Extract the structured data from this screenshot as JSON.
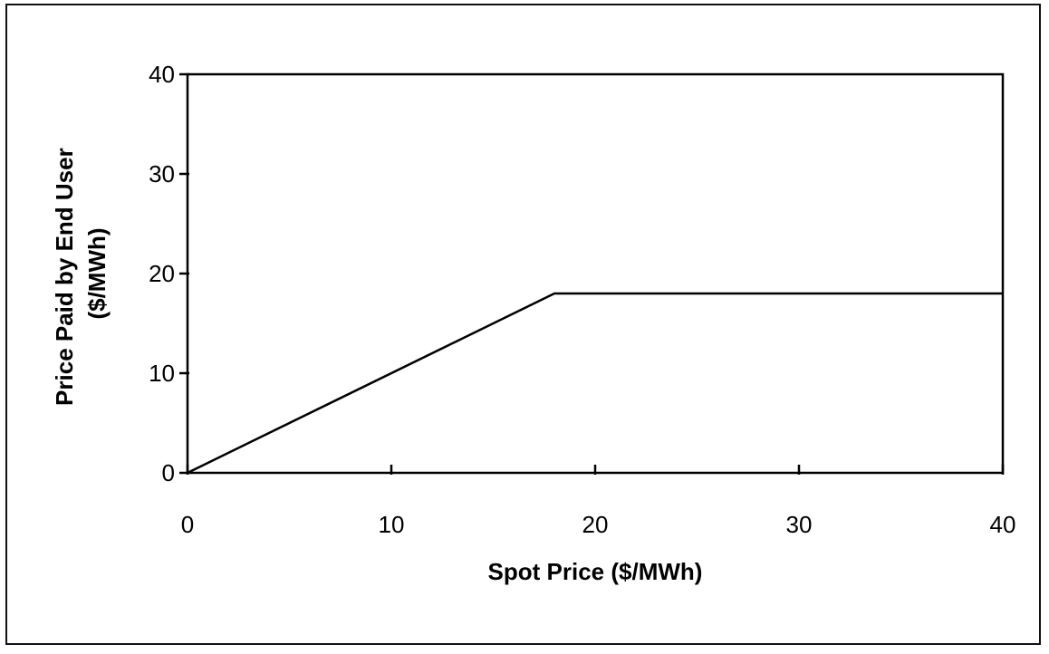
{
  "chart_data": {
    "type": "line",
    "title": "",
    "xlabel": "Spot Price ($/MWh)",
    "ylabel_line1": "Price Paid by End User",
    "ylabel_line2": "($/MWh)",
    "xlim": [
      0,
      40
    ],
    "ylim": [
      0,
      40
    ],
    "x_ticks": [
      "0",
      "10",
      "20",
      "30",
      "40"
    ],
    "y_ticks": [
      "0",
      "10",
      "20",
      "30",
      "40"
    ],
    "grid": false,
    "legend": "none",
    "series": [
      {
        "points": [
          {
            "x": 0,
            "y": 0
          },
          {
            "x": 18,
            "y": 18
          },
          {
            "x": 40,
            "y": 18
          }
        ],
        "color": "#000000"
      }
    ]
  }
}
